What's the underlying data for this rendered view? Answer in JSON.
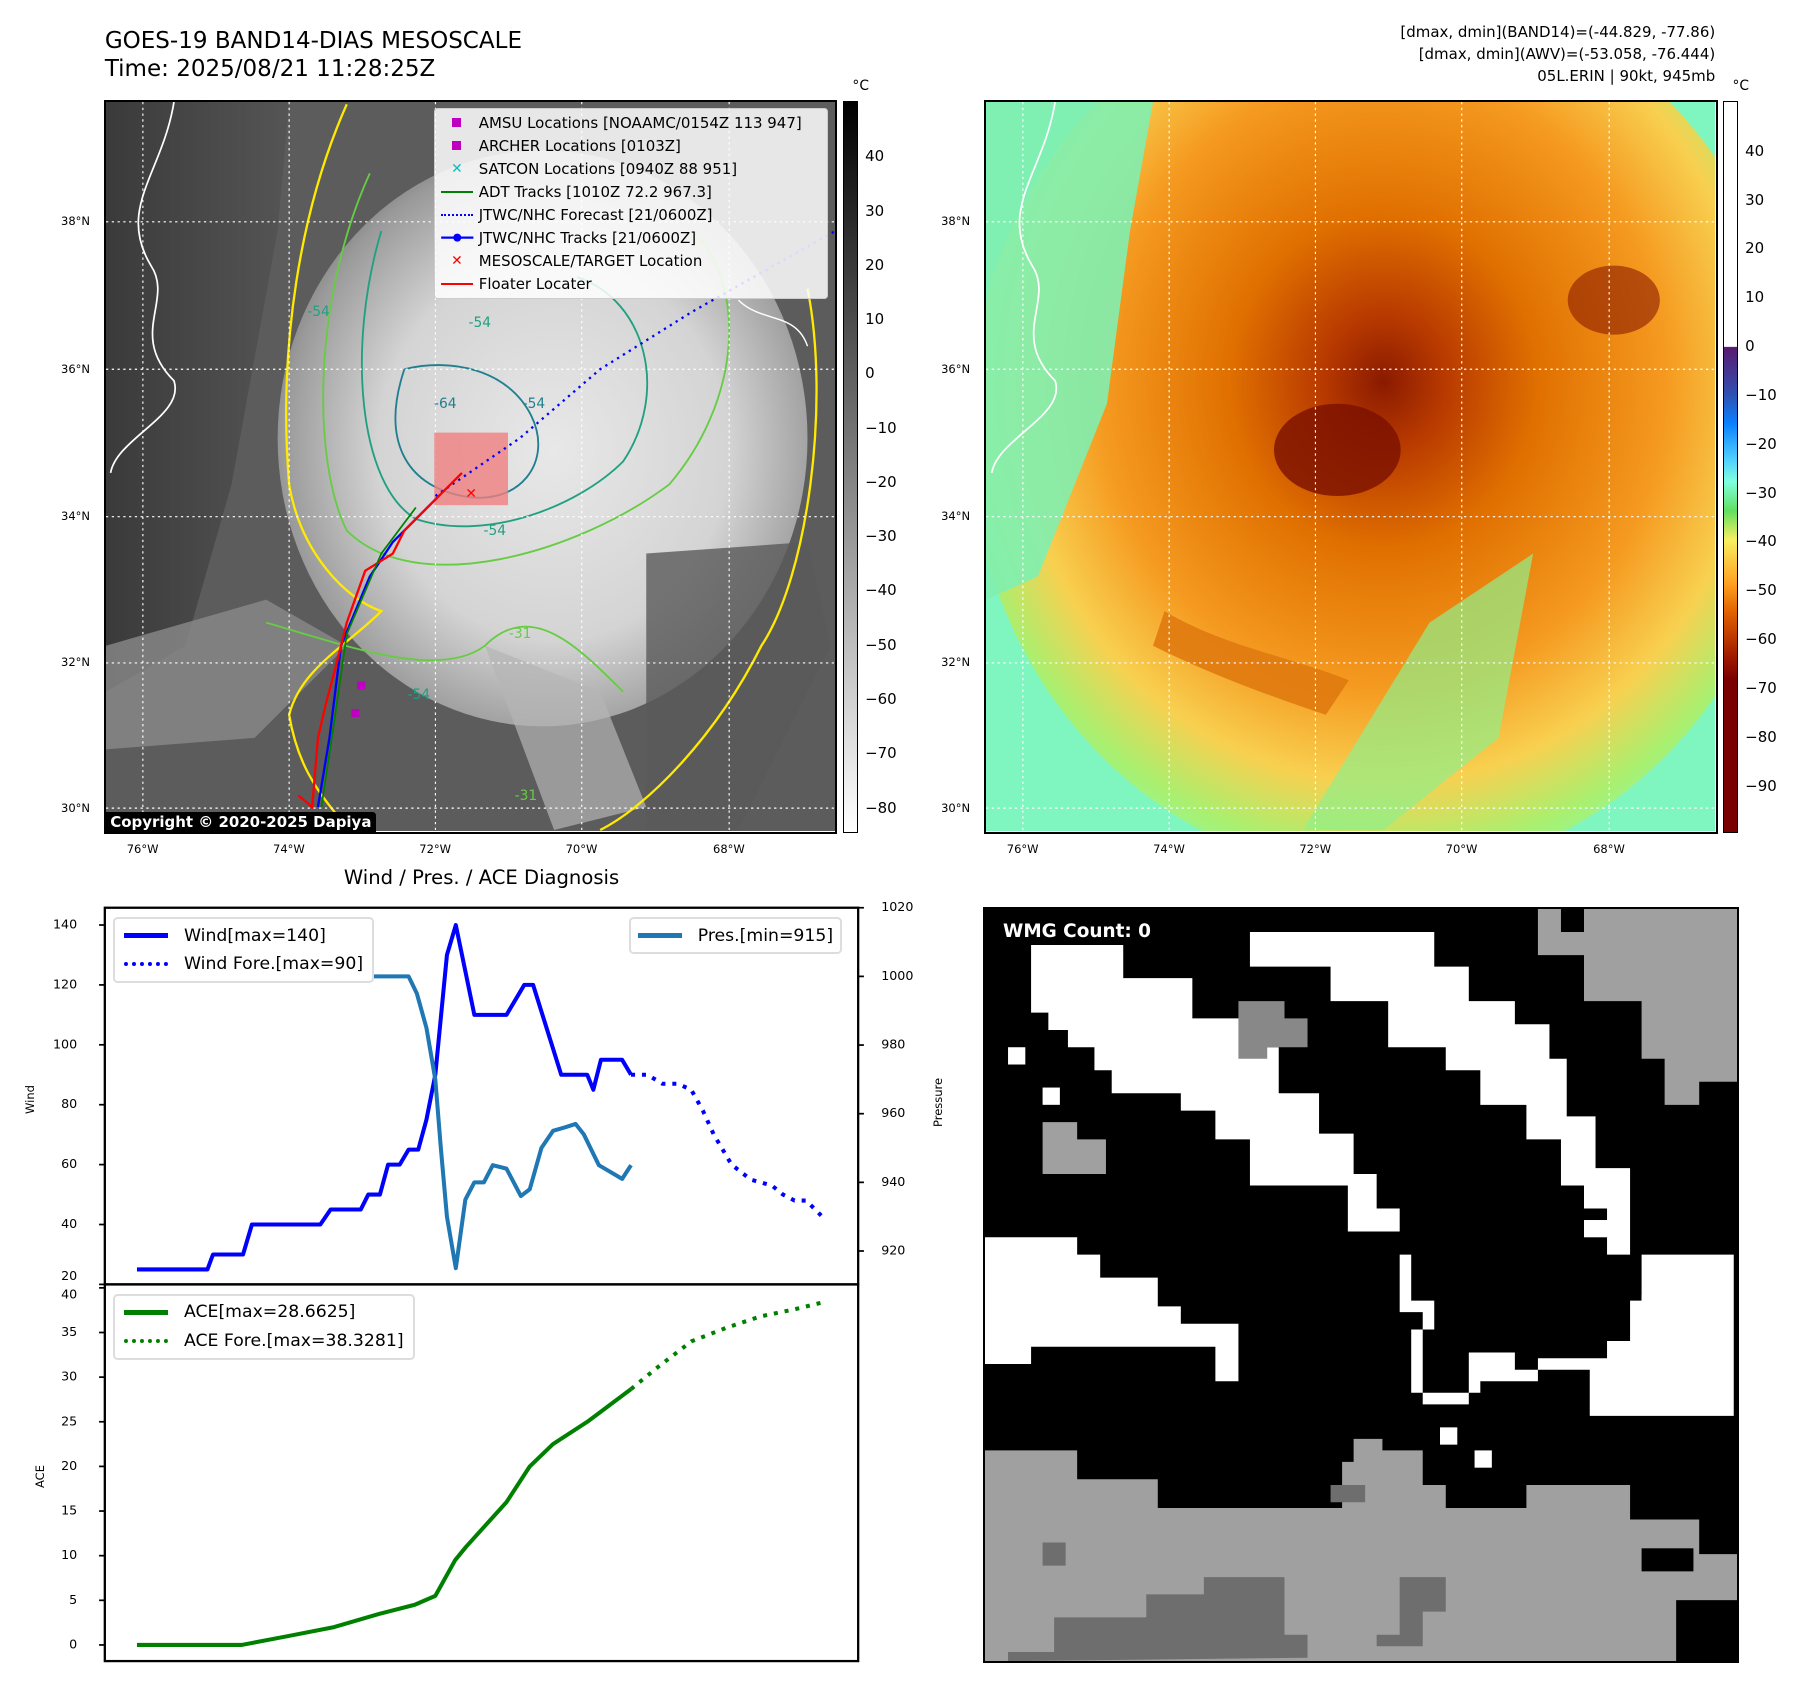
{
  "header": {
    "title": "GOES-19 BAND14-DIAS MESOSCALE",
    "time": "Time: 2025/08/21 11:28:25Z",
    "info_band14": "[dmax, dmin](BAND14)=(-44.829, -77.86)",
    "info_awv": "[dmax, dmin](AWV)=(-53.058, -76.444)",
    "storm": "05L.ERIN | 90kt, 945mb"
  },
  "maps": {
    "lat_labels": [
      "38°N",
      "36°N",
      "34°N",
      "32°N",
      "30°N"
    ],
    "lon_labels": [
      "76°W",
      "74°W",
      "72°W",
      "70°W",
      "68°W"
    ],
    "copyright": "Copyright © 2020-2025 Dapiya",
    "contour_labels": [
      "-54",
      "-54",
      "-64",
      "-54",
      "-54",
      "-31",
      "-54",
      "-31"
    ],
    "left_colorbar": {
      "unit": "°C",
      "ticks": [
        "40",
        "30",
        "20",
        "10",
        "0",
        "−10",
        "−20",
        "−30",
        "−40",
        "−50",
        "−60",
        "−70",
        "−80"
      ]
    },
    "right_colorbar": {
      "unit": "°C",
      "ticks": [
        "40",
        "30",
        "20",
        "10",
        "0",
        "−10",
        "−20",
        "−30",
        "−40",
        "−50",
        "−60",
        "−70",
        "−80",
        "−90"
      ]
    },
    "legend": [
      {
        "label": "AMSU Locations [NOAAMC/0154Z 113 947]",
        "icon": "magenta-square",
        "color": "#c000c0"
      },
      {
        "label": "ARCHER Locations [0103Z]",
        "icon": "magenta-square",
        "color": "#c000c0"
      },
      {
        "label": "SATCON Locations [0940Z 88 951]",
        "icon": "cyan-x",
        "color": "#00c0c0"
      },
      {
        "label": "ADT Tracks [1010Z 72.2 967.3]",
        "icon": "green-line",
        "color": "#008000"
      },
      {
        "label": "JTWC/NHC Forecast [21/0600Z]",
        "icon": "blue-dotted-line",
        "color": "#0000ff"
      },
      {
        "label": "JTWC/NHC Tracks [21/0600Z]",
        "icon": "blue-line-dot",
        "color": "#0000ff"
      },
      {
        "label": "MESOSCALE/TARGET Location",
        "icon": "red-x",
        "color": "#ff0000"
      },
      {
        "label": "Floater Locater",
        "icon": "red-line",
        "color": "#ff0000"
      }
    ]
  },
  "wmg": {
    "label": "WMG Count: 0"
  },
  "chart_data": [
    {
      "type": "line",
      "title": "Wind / Pres. / ACE Diagnosis",
      "ylabel": "Wind",
      "y2label": "Pressure",
      "xlim": [
        -4.7,
        105.4
      ],
      "ylim": [
        20,
        145
      ],
      "y2lim": [
        910,
        1020
      ],
      "yticks": [
        "20",
        "40",
        "60",
        "80",
        "100",
        "120",
        "140"
      ],
      "y2ticks": [
        "920",
        "940",
        "960",
        "980",
        "1000",
        "1020"
      ],
      "legend_left": [
        "Wind[max=140]",
        "Wind Fore.[max=90]"
      ],
      "legend_right": [
        "Pres.[min=915]"
      ],
      "series": [
        {
          "name": "Wind",
          "color": "#0000ff",
          "style": "solid",
          "points": [
            [
              0,
              25
            ],
            [
              10.3,
              25
            ],
            [
              11.1,
              30
            ],
            [
              15.5,
              30
            ],
            [
              16.8,
              40
            ],
            [
              26.8,
              40
            ],
            [
              28.3,
              45
            ],
            [
              32.7,
              45
            ],
            [
              33.8,
              50
            ],
            [
              35.5,
              50
            ],
            [
              36.7,
              60
            ],
            [
              38.4,
              60
            ],
            [
              39.7,
              65
            ],
            [
              41.1,
              65
            ],
            [
              42.3,
              75
            ],
            [
              43.6,
              90
            ],
            [
              45.3,
              130
            ],
            [
              46.6,
              140
            ],
            [
              49.3,
              110
            ],
            [
              54.0,
              110
            ],
            [
              56.6,
              120
            ],
            [
              57.9,
              120
            ],
            [
              62.0,
              90
            ],
            [
              65.8,
              90
            ],
            [
              66.7,
              85
            ],
            [
              67.8,
              95
            ],
            [
              70.9,
              95
            ],
            [
              72.2,
              90
            ]
          ]
        },
        {
          "name": "Wind Fore.",
          "color": "#0000ff",
          "style": "dotted",
          "points": [
            [
              72.2,
              90
            ],
            [
              74.6,
              90
            ],
            [
              76.8,
              87
            ],
            [
              79.0,
              87
            ],
            [
              81.0,
              85
            ],
            [
              82.7,
              78
            ],
            [
              84.3,
              70
            ],
            [
              86.9,
              60
            ],
            [
              89.7,
              55
            ],
            [
              92.8,
              53
            ],
            [
              94.4,
              50
            ],
            [
              96.1,
              48
            ],
            [
              97.8,
              48
            ],
            [
              100,
              43
            ]
          ]
        },
        {
          "name": "Pres.",
          "color": "#1f77b4",
          "style": "solid",
          "axis": "right",
          "points": [
            [
              0,
              1015
            ],
            [
              1.5,
              1015
            ],
            [
              2.7,
              1008
            ],
            [
              4.9,
              1006
            ],
            [
              15.3,
              1006
            ],
            [
              16.2,
              1005
            ],
            [
              19.0,
              1004
            ],
            [
              22.1,
              1006
            ],
            [
              23.7,
              1004
            ],
            [
              25.4,
              1002
            ],
            [
              28.8,
              1002
            ],
            [
              30.5,
              1002
            ],
            [
              32.2,
              1000
            ],
            [
              33.8,
              1000
            ],
            [
              39.7,
              1000
            ],
            [
              40.9,
              995
            ],
            [
              42.3,
              985
            ],
            [
              43.6,
              970
            ],
            [
              44.4,
              950
            ],
            [
              45.3,
              930
            ],
            [
              46.6,
              915
            ],
            [
              48.0,
              935
            ],
            [
              49.3,
              940
            ],
            [
              50.7,
              940
            ],
            [
              52.0,
              945
            ],
            [
              54.0,
              944
            ],
            [
              56.1,
              936
            ],
            [
              57.4,
              938
            ],
            [
              59.1,
              950
            ],
            [
              60.8,
              955
            ],
            [
              62.5,
              956
            ],
            [
              64.1,
              957
            ],
            [
              65.3,
              954
            ],
            [
              67.5,
              945
            ],
            [
              70.9,
              941
            ],
            [
              72.2,
              945
            ]
          ]
        }
      ]
    },
    {
      "type": "line",
      "ylabel": "ACE",
      "xlim": [
        -4.7,
        105.4
      ],
      "ylim": [
        -1.3,
        39.5
      ],
      "yticks": [
        "0",
        "5",
        "10",
        "15",
        "20",
        "25",
        "30",
        "35",
        "40"
      ],
      "legend": [
        "ACE[max=28.6625]",
        "ACE Fore.[max=38.3281]"
      ],
      "series": [
        {
          "name": "ACE",
          "color": "#008000",
          "style": "solid",
          "points": [
            [
              0,
              0
            ],
            [
              15.3,
              0
            ],
            [
              22.1,
              1
            ],
            [
              28.8,
              2
            ],
            [
              35.5,
              3.5
            ],
            [
              40.6,
              4.5
            ],
            [
              43.6,
              5.5
            ],
            [
              46.5,
              9.5
            ],
            [
              48.1,
              11
            ],
            [
              54.0,
              16
            ],
            [
              57.4,
              20
            ],
            [
              60.8,
              22.5
            ],
            [
              65.8,
              25
            ],
            [
              72.2,
              28.66
            ]
          ]
        },
        {
          "name": "ACE Fore.",
          "color": "#008000",
          "style": "dotted",
          "points": [
            [
              72.2,
              28.66
            ],
            [
              75.9,
              31
            ],
            [
              81.0,
              34
            ],
            [
              86.0,
              35.5
            ],
            [
              91.1,
              36.8
            ],
            [
              96.1,
              37.6
            ],
            [
              100,
              38.33
            ]
          ]
        }
      ]
    }
  ]
}
